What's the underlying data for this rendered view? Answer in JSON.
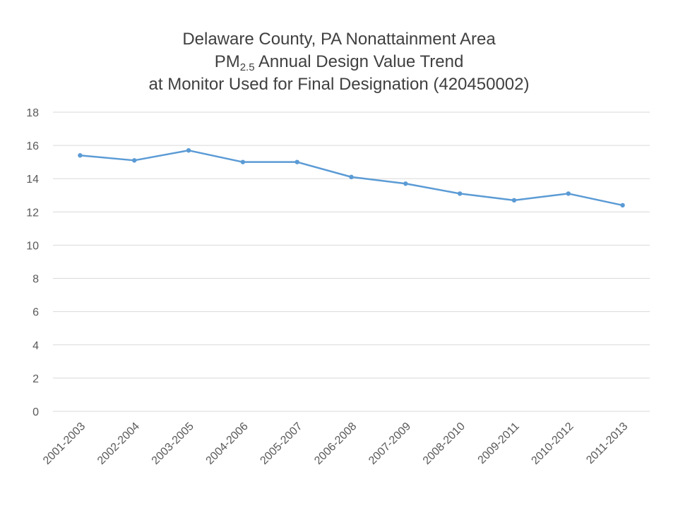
{
  "title": {
    "line1": "Delaware County, PA Nonattainment Area",
    "line2_prefix": "PM",
    "line2_sub": "2.5",
    "line2_suffix": " Annual Design Value Trend",
    "line3": "at Monitor Used for Final Designation (420450002)"
  },
  "chart_data": {
    "type": "line",
    "title": "Delaware County, PA Nonattainment Area PM2.5 Annual Design Value Trend at Monitor Used for Final Designation (420450002)",
    "xlabel": "",
    "ylabel": "",
    "categories": [
      "2001-2003",
      "2002-2004",
      "2003-2005",
      "2004-2006",
      "2005-2007",
      "2006-2008",
      "2007-2009",
      "2008-2010",
      "2009-2011",
      "2010-2012",
      "2011-2013"
    ],
    "series": [
      {
        "values": [
          15.4,
          15.1,
          15.7,
          15.0,
          15.0,
          14.1,
          13.7,
          13.1,
          12.7,
          13.1,
          12.4
        ]
      }
    ],
    "ylim": [
      0,
      18
    ],
    "yticks": [
      0,
      2,
      4,
      6,
      8,
      10,
      12,
      14,
      16,
      18
    ],
    "grid": true,
    "legend": "none",
    "line_color": "#5b9bd5",
    "grid_color": "#d9d9d9"
  }
}
